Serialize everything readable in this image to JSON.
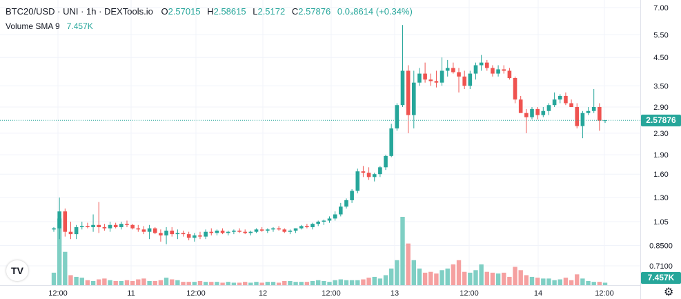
{
  "legend": {
    "symbol": "BTC20/USD · UNI · 1h · DEXTools.io",
    "o_label": "O",
    "o_value": "2.57015",
    "h_label": "H",
    "h_value": "2.58615",
    "l_label": "L",
    "l_value": "2.5172",
    "c_label": "C",
    "c_value": "2.57876",
    "change": "0.0₃8614 (+0.34%)"
  },
  "volume_legend": {
    "label": "Volume SMA 9",
    "value": "7.457K"
  },
  "price_tag": "2.57876",
  "volume_tag": "7.457K",
  "colors": {
    "up": "#26a69a",
    "down": "#ef5350",
    "up_vol": "#7fcfc4",
    "down_vol": "#f5a0a0",
    "grid": "#f0f3fa",
    "axis_text": "#131722"
  },
  "chart_data": {
    "type": "candlestick",
    "y_scale": "log",
    "y_ticks": [
      "7.00",
      "5.50",
      "4.50",
      "3.50",
      "2.90",
      "2.30",
      "1.90",
      "1.60",
      "1.30",
      "1.05",
      "0.8500",
      "0.7100"
    ],
    "x_ticks": [
      "12:00",
      "11",
      "12:00",
      "12",
      "12:00",
      "13",
      "12:00",
      "14",
      "12:00"
    ],
    "candles": [
      [
        0.98,
        1.0,
        0.96,
        0.99
      ],
      [
        0.99,
        1.3,
        0.9,
        1.15
      ],
      [
        1.15,
        1.18,
        0.92,
        0.96
      ],
      [
        0.96,
        1.05,
        0.9,
        0.94
      ],
      [
        0.94,
        1.02,
        0.9,
        1.0
      ],
      [
        1.0,
        1.05,
        0.98,
        1.01
      ],
      [
        1.01,
        1.04,
        0.99,
        1.0
      ],
      [
        1.0,
        1.12,
        0.96,
        1.02
      ],
      [
        1.02,
        1.25,
        0.95,
        1.0
      ],
      [
        1.0,
        1.03,
        0.97,
        0.99
      ],
      [
        0.99,
        1.05,
        0.96,
        1.02
      ],
      [
        1.02,
        1.04,
        0.99,
        1.0
      ],
      [
        1.0,
        1.05,
        0.98,
        1.03
      ],
      [
        1.03,
        1.06,
        1.0,
        1.02
      ],
      [
        1.02,
        1.03,
        0.98,
        0.99
      ],
      [
        0.99,
        1.02,
        0.96,
        0.98
      ],
      [
        0.98,
        1.01,
        0.94,
        0.96
      ],
      [
        0.96,
        1.02,
        0.9,
        0.99
      ],
      [
        0.99,
        1.0,
        0.94,
        0.95
      ],
      [
        0.95,
        0.98,
        0.88,
        0.93
      ],
      [
        0.93,
        1.0,
        0.86,
        0.97
      ],
      [
        0.97,
        1.0,
        0.92,
        0.94
      ],
      [
        0.94,
        0.98,
        0.9,
        0.95
      ],
      [
        0.95,
        0.97,
        0.92,
        0.94
      ],
      [
        0.94,
        0.96,
        0.89,
        0.91
      ],
      [
        0.91,
        0.95,
        0.88,
        0.93
      ],
      [
        0.93,
        0.96,
        0.9,
        0.92
      ],
      [
        0.92,
        0.98,
        0.9,
        0.96
      ],
      [
        0.96,
        0.99,
        0.93,
        0.95
      ],
      [
        0.95,
        0.98,
        0.93,
        0.97
      ],
      [
        0.97,
        0.99,
        0.94,
        0.95
      ],
      [
        0.95,
        0.97,
        0.93,
        0.96
      ],
      [
        0.96,
        0.98,
        0.94,
        0.97
      ],
      [
        0.97,
        0.99,
        0.95,
        0.96
      ],
      [
        0.96,
        0.98,
        0.94,
        0.95
      ],
      [
        0.95,
        0.97,
        0.93,
        0.96
      ],
      [
        0.96,
        0.99,
        0.95,
        0.98
      ],
      [
        0.98,
        1.0,
        0.96,
        0.97
      ],
      [
        0.97,
        0.99,
        0.95,
        0.98
      ],
      [
        0.98,
        1.0,
        0.96,
        0.99
      ],
      [
        0.99,
        1.01,
        0.97,
        0.98
      ],
      [
        0.98,
        0.99,
        0.95,
        0.96
      ],
      [
        0.96,
        0.98,
        0.94,
        0.97
      ],
      [
        0.97,
        0.99,
        0.95,
        0.99
      ],
      [
        0.99,
        1.02,
        0.98,
        1.01
      ],
      [
        1.01,
        1.03,
        0.99,
        1.0
      ],
      [
        1.0,
        1.04,
        0.98,
        1.03
      ],
      [
        1.03,
        1.06,
        1.01,
        1.05
      ],
      [
        1.05,
        1.07,
        1.02,
        1.06
      ],
      [
        1.06,
        1.1,
        1.04,
        1.08
      ],
      [
        1.08,
        1.15,
        1.06,
        1.12
      ],
      [
        1.12,
        1.24,
        1.1,
        1.2
      ],
      [
        1.2,
        1.29,
        1.18,
        1.27
      ],
      [
        1.27,
        1.4,
        1.24,
        1.38
      ],
      [
        1.38,
        1.68,
        1.35,
        1.64
      ],
      [
        1.64,
        1.72,
        1.56,
        1.62
      ],
      [
        1.62,
        1.7,
        1.52,
        1.56
      ],
      [
        1.56,
        1.62,
        1.5,
        1.6
      ],
      [
        1.6,
        1.72,
        1.56,
        1.7
      ],
      [
        1.7,
        1.9,
        1.66,
        1.88
      ],
      [
        1.88,
        2.5,
        1.86,
        2.4
      ],
      [
        2.4,
        3.0,
        2.35,
        2.95
      ],
      [
        2.95,
        6.0,
        2.9,
        4.0
      ],
      [
        4.0,
        4.2,
        2.3,
        2.7
      ],
      [
        2.7,
        4.0,
        2.4,
        3.6
      ],
      [
        3.6,
        4.1,
        3.5,
        3.9
      ],
      [
        3.9,
        4.3,
        3.6,
        3.7
      ],
      [
        3.7,
        3.9,
        3.5,
        3.65
      ],
      [
        3.65,
        4.0,
        3.45,
        3.6
      ],
      [
        3.6,
        4.5,
        3.5,
        4.0
      ],
      [
        4.0,
        4.4,
        3.8,
        4.1
      ],
      [
        4.1,
        4.3,
        3.9,
        3.95
      ],
      [
        3.95,
        4.1,
        3.3,
        3.8
      ],
      [
        3.8,
        4.0,
        3.4,
        3.5
      ],
      [
        3.5,
        4.0,
        3.4,
        3.9
      ],
      [
        3.9,
        4.3,
        3.7,
        4.2
      ],
      [
        4.2,
        4.6,
        4.0,
        4.3
      ],
      [
        4.3,
        4.4,
        4.0,
        4.1
      ],
      [
        4.1,
        4.2,
        3.8,
        3.9
      ],
      [
        3.9,
        4.2,
        3.8,
        4.05
      ],
      [
        4.05,
        4.2,
        3.9,
        4.0
      ],
      [
        4.0,
        4.1,
        3.7,
        3.75
      ],
      [
        3.75,
        3.8,
        3.0,
        3.1
      ],
      [
        3.1,
        3.2,
        2.8,
        2.75
      ],
      [
        2.75,
        2.85,
        2.3,
        2.65
      ],
      [
        2.65,
        2.9,
        2.6,
        2.85
      ],
      [
        2.85,
        2.9,
        2.6,
        2.7
      ],
      [
        2.7,
        2.9,
        2.65,
        2.8
      ],
      [
        2.8,
        3.0,
        2.7,
        2.95
      ],
      [
        2.95,
        3.3,
        2.9,
        3.1
      ],
      [
        3.1,
        3.25,
        3.0,
        3.2
      ],
      [
        3.2,
        3.3,
        2.95,
        3.0
      ],
      [
        3.0,
        3.1,
        2.9,
        2.9
      ],
      [
        2.9,
        3.0,
        2.4,
        2.45
      ],
      [
        2.45,
        2.8,
        2.2,
        2.75
      ],
      [
        2.75,
        2.9,
        2.7,
        2.8
      ],
      [
        2.8,
        3.4,
        2.75,
        2.9
      ],
      [
        2.9,
        3.0,
        2.35,
        2.57
      ],
      [
        2.57,
        2.586,
        2.517,
        2.579
      ]
    ],
    "volumes": [
      1.5,
      8.0,
      4.0,
      1.2,
      1.0,
      0.9,
      0.6,
      0.5,
      0.7,
      0.8,
      0.6,
      0.5,
      0.5,
      0.6,
      0.5,
      0.7,
      0.8,
      0.5,
      0.5,
      0.6,
      0.9,
      0.7,
      0.6,
      0.4,
      0.4,
      0.4,
      0.5,
      0.4,
      0.4,
      0.4,
      0.3,
      0.4,
      0.3,
      0.3,
      0.4,
      0.3,
      0.4,
      0.3,
      0.4,
      0.4,
      0.3,
      0.5,
      0.5,
      0.4,
      0.4,
      0.4,
      0.5,
      0.6,
      0.5,
      0.4,
      0.6,
      0.7,
      0.6,
      0.6,
      0.6,
      0.7,
      0.9,
      1.0,
      0.8,
      1.2,
      2.0,
      3.0,
      8.2,
      5.0,
      3.0,
      2.0,
      1.5,
      1.6,
      1.4,
      1.8,
      2.0,
      2.5,
      3.0,
      1.6,
      1.5,
      1.8,
      2.5,
      1.6,
      1.5,
      1.4,
      1.5,
      1.0,
      2.2,
      1.8,
      1.2,
      1.0,
      0.9,
      0.8,
      0.8,
      0.6,
      0.7,
      0.9,
      0.6,
      1.3,
      0.8,
      0.5,
      0.4,
      0.4,
      0.3
    ],
    "volume_up": [
      true,
      true,
      true,
      false,
      true,
      true,
      false,
      true,
      false,
      false,
      true,
      false,
      true,
      false,
      false,
      false,
      false,
      true,
      false,
      false,
      true,
      false,
      true,
      false,
      false,
      true,
      false,
      true,
      false,
      true,
      false,
      true,
      true,
      false,
      false,
      true,
      true,
      false,
      true,
      true,
      false,
      false,
      true,
      true,
      true,
      false,
      true,
      true,
      true,
      true,
      true,
      true,
      true,
      true,
      true,
      false,
      false,
      true,
      true,
      true,
      true,
      true,
      true,
      false,
      true,
      true,
      false,
      false,
      false,
      true,
      true,
      false,
      false,
      false,
      true,
      true,
      true,
      false,
      false,
      true,
      false,
      false,
      false,
      false,
      false,
      true,
      false,
      true,
      true,
      true,
      true,
      false,
      false,
      false,
      true,
      true,
      true,
      false,
      true
    ]
  }
}
